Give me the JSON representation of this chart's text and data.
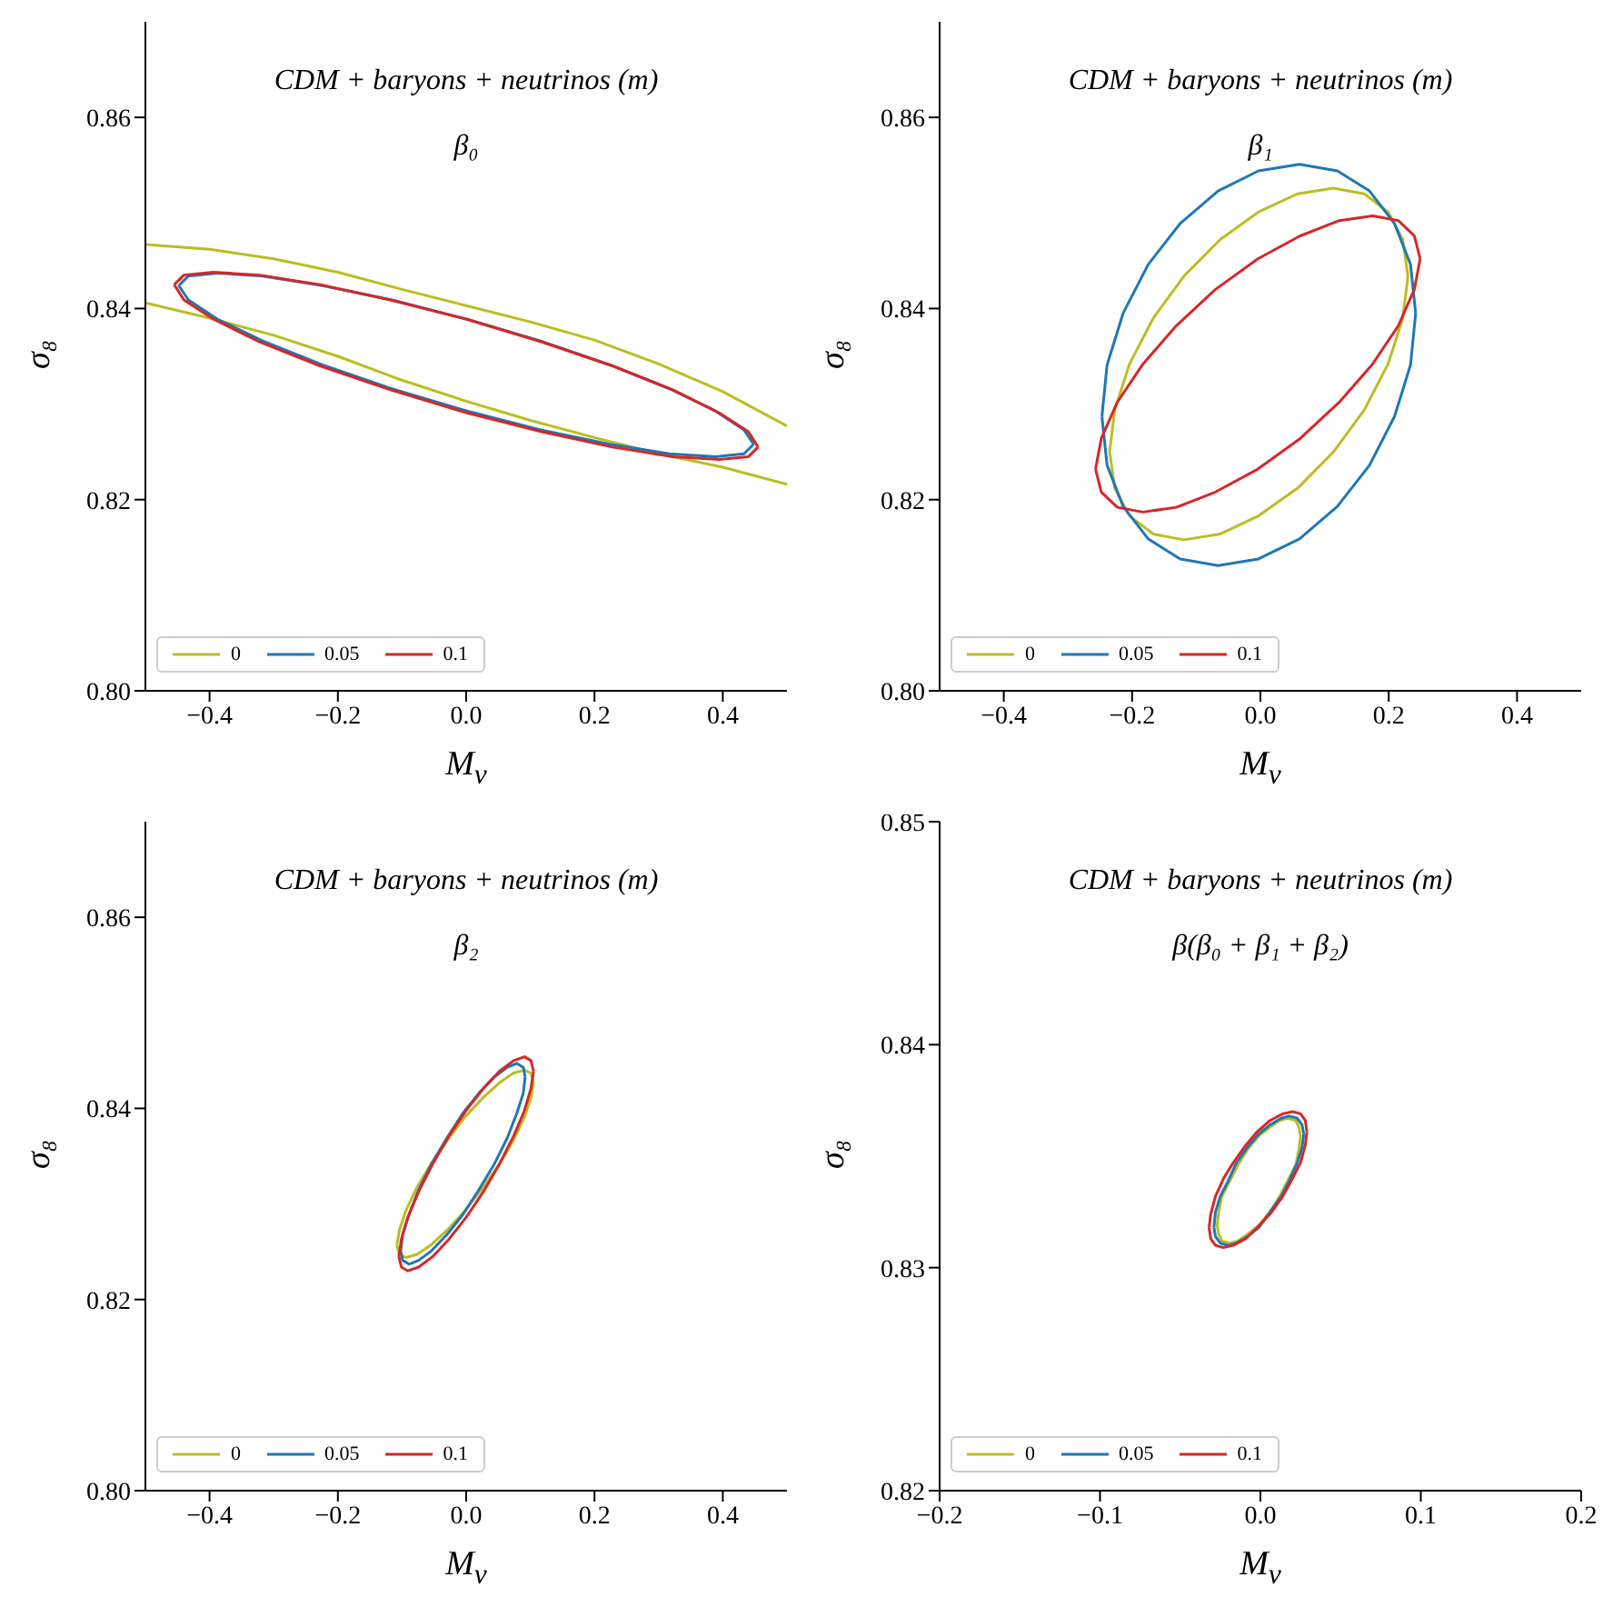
{
  "chart_data": [
    {
      "type": "line",
      "title": "CDM + baryons + neutrinos (m)",
      "subtitle": "β₀",
      "xlabel": "M$_{ν}$",
      "ylabel": "σ₈",
      "xlim": [
        -0.5,
        0.5
      ],
      "xticks": [
        {
          "value": -0.4,
          "label": "−0.4"
        },
        {
          "value": -0.2,
          "label": "−0.2"
        },
        {
          "value": 0,
          "label": "0.0"
        },
        {
          "value": 0.2,
          "label": "0.2"
        },
        {
          "value": 0.4,
          "label": "0.4"
        }
      ],
      "ylim": [
        0.8,
        0.87
      ],
      "yticks": [
        {
          "value": 0.8,
          "label": "0.80"
        },
        {
          "value": 0.82,
          "label": "0.82"
        },
        {
          "value": 0.84,
          "label": "0.84"
        },
        {
          "value": 0.86,
          "label": "0.86"
        }
      ],
      "legend": "bottom left",
      "series": [
        {
          "name": "0",
          "color": "#bcbd22",
          "x": [
            -0.5,
            -0.4,
            -0.3,
            -0.2,
            -0.1,
            0,
            0.1,
            0.2,
            0.3,
            0.4,
            0.5,
            null,
            0.5,
            0.4,
            0.3,
            0.2,
            0.1,
            0,
            -0.1,
            -0.2,
            -0.3,
            -0.4,
            -0.5
          ],
          "values": [
            0.8467,
            0.8462,
            0.8452,
            0.8438,
            0.842,
            0.8403,
            0.8386,
            0.8367,
            0.8342,
            0.8313,
            0.8277,
            null,
            0.8216,
            0.8234,
            0.8248,
            0.8265,
            0.8283,
            0.8303,
            0.8325,
            0.835,
            0.8372,
            0.839,
            0.8406
          ]
        },
        {
          "name": "0.05",
          "color": "#1f77b4",
          "x": [
            -0.448,
            -0.433,
            -0.388,
            -0.317,
            -0.224,
            -0.116,
            0,
            0.116,
            0.224,
            0.317,
            0.388,
            0.433,
            0.448,
            null,
            0.448,
            0.433,
            0.388,
            0.317,
            0.224,
            0.116,
            0,
            -0.116,
            -0.224,
            -0.317,
            -0.388,
            -0.433,
            -0.448
          ],
          "values": [
            0.8424,
            0.8434,
            0.8437,
            0.8434,
            0.8424,
            0.8409,
            0.8389,
            0.8366,
            0.8341,
            0.8316,
            0.8293,
            0.8273,
            0.8258,
            null,
            0.8258,
            0.8248,
            0.8245,
            0.8248,
            0.8258,
            0.8273,
            0.8293,
            0.8316,
            0.8341,
            0.8366,
            0.8389,
            0.8409,
            0.8424
          ]
        },
        {
          "name": "0.1",
          "color": "#d62728",
          "x": [
            -0.455,
            -0.44,
            -0.394,
            -0.322,
            -0.228,
            -0.118,
            0,
            0.118,
            0.228,
            0.322,
            0.394,
            0.44,
            0.455,
            null,
            0.455,
            0.44,
            0.394,
            0.322,
            0.228,
            0.118,
            0,
            -0.118,
            -0.228,
            -0.322,
            -0.394,
            -0.44,
            -0.455
          ],
          "values": [
            0.8425,
            0.8435,
            0.8438,
            0.8435,
            0.8425,
            0.8409,
            0.8389,
            0.8365,
            0.834,
            0.8315,
            0.8291,
            0.8271,
            0.8255,
            null,
            0.8255,
            0.8245,
            0.8242,
            0.8245,
            0.8255,
            0.8271,
            0.8291,
            0.8315,
            0.834,
            0.8365,
            0.8389,
            0.8409,
            0.8425
          ]
        }
      ]
    },
    {
      "type": "line",
      "title": "CDM + baryons + neutrinos (m)",
      "subtitle": "β₁",
      "xlabel": "M$_{ν}$",
      "ylabel": "σ₈",
      "xlim": [
        -0.5,
        0.5
      ],
      "xticks": [
        {
          "value": -0.4,
          "label": "−0.4"
        },
        {
          "value": -0.2,
          "label": "−0.2"
        },
        {
          "value": 0,
          "label": "0.0"
        },
        {
          "value": 0.2,
          "label": "0.2"
        },
        {
          "value": 0.4,
          "label": "0.4"
        }
      ],
      "ylim": [
        0.8,
        0.87
      ],
      "yticks": [
        {
          "value": 0.8,
          "label": "0.80"
        },
        {
          "value": 0.82,
          "label": "0.82"
        },
        {
          "value": 0.84,
          "label": "0.84"
        },
        {
          "value": 0.86,
          "label": "0.86"
        }
      ],
      "legend": "bottom left",
      "series": [
        {
          "name": "0",
          "color": "#bcbd22",
          "x": [
            -0.235,
            -0.227,
            -0.204,
            -0.167,
            -0.119,
            -0.063,
            -0.003,
            0.058,
            0.114,
            0.162,
            0.199,
            0.222,
            0.23,
            null,
            0.23,
            0.222,
            0.199,
            0.162,
            0.114,
            0.058,
            -0.003,
            -0.063,
            -0.119,
            -0.167,
            -0.204,
            -0.227,
            -0.235
          ],
          "values": [
            0.825,
            0.8294,
            0.8342,
            0.839,
            0.8434,
            0.8472,
            0.8501,
            0.852,
            0.8526,
            0.852,
            0.8501,
            0.8472,
            0.8434,
            null,
            0.8434,
            0.839,
            0.8342,
            0.8294,
            0.825,
            0.8212,
            0.8183,
            0.8164,
            0.8158,
            0.8164,
            0.8183,
            0.8212,
            0.825
          ]
        },
        {
          "name": "0.05",
          "color": "#1f77b4",
          "x": [
            -0.247,
            -0.239,
            -0.214,
            -0.175,
            -0.125,
            -0.066,
            -0.003,
            0.061,
            0.12,
            0.17,
            0.209,
            0.234,
            0.242,
            null,
            0.242,
            0.234,
            0.209,
            0.17,
            0.12,
            0.061,
            -0.003,
            -0.066,
            -0.125,
            -0.175,
            -0.214,
            -0.239,
            -0.247
          ],
          "values": [
            0.8287,
            0.8341,
            0.8395,
            0.8446,
            0.8489,
            0.8523,
            0.8544,
            0.8551,
            0.8544,
            0.8523,
            0.8489,
            0.8446,
            0.8395,
            null,
            0.8395,
            0.8341,
            0.8287,
            0.8236,
            0.8193,
            0.8159,
            0.8138,
            0.8131,
            0.8138,
            0.8159,
            0.8193,
            0.8236,
            0.8287
          ]
        },
        {
          "name": "0.1",
          "color": "#d62728",
          "x": [
            -0.257,
            -0.248,
            -0.223,
            -0.183,
            -0.131,
            -0.07,
            -0.004,
            0.062,
            0.123,
            0.175,
            0.215,
            0.24,
            0.249,
            null,
            0.249,
            0.24,
            0.215,
            0.175,
            0.123,
            0.062,
            -0.004,
            -0.07,
            -0.131,
            -0.183,
            -0.223,
            -0.248,
            -0.257
          ],
          "values": [
            0.8232,
            0.8264,
            0.8302,
            0.8342,
            0.8382,
            0.842,
            0.8452,
            0.8476,
            0.8492,
            0.8497,
            0.8492,
            0.8476,
            0.8452,
            null,
            0.8452,
            0.842,
            0.8382,
            0.8342,
            0.8302,
            0.8264,
            0.8232,
            0.8208,
            0.8192,
            0.8187,
            0.8192,
            0.8208,
            0.8232
          ]
        }
      ]
    },
    {
      "type": "line",
      "title": "CDM + baryons + neutrinos (m)",
      "subtitle": "β₂",
      "xlabel": "M$_{ν}$",
      "ylabel": "σ₈",
      "xlim": [
        -0.5,
        0.5
      ],
      "xticks": [
        {
          "value": -0.4,
          "label": "−0.4"
        },
        {
          "value": -0.2,
          "label": "−0.2"
        },
        {
          "value": 0,
          "label": "0.0"
        },
        {
          "value": 0.2,
          "label": "0.2"
        },
        {
          "value": 0.4,
          "label": "0.4"
        }
      ],
      "ylim": [
        0.8,
        0.87
      ],
      "yticks": [
        {
          "value": 0.8,
          "label": "0.80"
        },
        {
          "value": 0.82,
          "label": "0.82"
        },
        {
          "value": 0.84,
          "label": "0.84"
        },
        {
          "value": 0.86,
          "label": "0.86"
        }
      ],
      "legend": "bottom left",
      "series": [
        {
          "name": "0",
          "color": "#bcbd22",
          "x": [
            -0.108,
            -0.104,
            -0.094,
            -0.077,
            -0.055,
            -0.029,
            -0.002,
            0.026,
            0.052,
            0.074,
            0.091,
            0.101,
            0.105,
            null,
            0.105,
            0.101,
            0.091,
            0.074,
            0.052,
            0.026,
            -0.002,
            -0.029,
            -0.055,
            -0.077,
            -0.094,
            -0.104,
            -0.108
          ],
          "values": [
            0.8257,
            0.8273,
            0.8293,
            0.8317,
            0.8342,
            0.8367,
            0.8391,
            0.8411,
            0.8427,
            0.8437,
            0.844,
            0.8437,
            0.8427,
            null,
            0.8427,
            0.8411,
            0.8391,
            0.8367,
            0.8342,
            0.8317,
            0.8293,
            0.8273,
            0.8257,
            0.8247,
            0.8244,
            0.8247,
            0.8257
          ]
        },
        {
          "name": "0.05",
          "color": "#1f77b4",
          "x": [
            -0.102,
            -0.099,
            -0.089,
            -0.074,
            -0.054,
            -0.03,
            -0.005,
            0.02,
            0.044,
            0.064,
            0.079,
            0.089,
            0.092,
            null,
            0.092,
            0.089,
            0.079,
            0.064,
            0.044,
            0.02,
            -0.005,
            -0.03,
            -0.054,
            -0.074,
            -0.089,
            -0.099,
            -0.102
          ],
          "values": [
            0.8251,
            0.8268,
            0.8289,
            0.8315,
            0.8342,
            0.8369,
            0.8395,
            0.8416,
            0.8433,
            0.8443,
            0.8447,
            0.8443,
            0.8433,
            null,
            0.8433,
            0.8416,
            0.8395,
            0.8369,
            0.8342,
            0.8315,
            0.8289,
            0.8268,
            0.8251,
            0.8241,
            0.8237,
            0.8241,
            0.8251
          ]
        },
        {
          "name": "0.1",
          "color": "#d62728",
          "x": [
            -0.105,
            -0.101,
            -0.091,
            -0.074,
            -0.052,
            -0.027,
            0,
            0.027,
            0.052,
            0.074,
            0.091,
            0.101,
            0.105,
            null,
            0.105,
            0.101,
            0.091,
            0.074,
            0.052,
            0.027,
            0,
            -0.027,
            -0.052,
            -0.074,
            -0.091,
            -0.101,
            -0.105
          ],
          "values": [
            0.8245,
            0.8263,
            0.8286,
            0.8313,
            0.8342,
            0.8371,
            0.8398,
            0.8421,
            0.8439,
            0.845,
            0.8454,
            0.845,
            0.8439,
            null,
            0.8439,
            0.8421,
            0.8398,
            0.8371,
            0.8342,
            0.8313,
            0.8286,
            0.8263,
            0.8245,
            0.8234,
            0.823,
            0.8234,
            0.8245
          ]
        }
      ]
    },
    {
      "type": "line",
      "title": "CDM + baryons + neutrinos (m)",
      "subtitle": "β(β₀ + β₁ + β₂)",
      "xlabel": "M$_{ν}$",
      "ylabel": "σ₈",
      "xlim": [
        -0.2,
        0.2
      ],
      "xticks": [
        {
          "value": -0.2,
          "label": "−0.2"
        },
        {
          "value": -0.1,
          "label": "−0.1"
        },
        {
          "value": 0,
          "label": "0.0"
        },
        0.1,
        0.2
      ],
      "ylim": [
        0.82,
        0.85
      ],
      "yticks": [
        0.82,
        0.83,
        0.84,
        0.85
      ],
      "legend": "bottom left",
      "series": [
        {
          "name": "0",
          "color": "#bcbd22",
          "x": [
            -0.027,
            -0.026,
            -0.024,
            -0.019,
            -0.014,
            -0.008,
            -0.001,
            0.006,
            0.012,
            0.017,
            0.022,
            0.024,
            0.025,
            null,
            0.025,
            0.024,
            0.022,
            0.017,
            0.012,
            0.006,
            -0.001,
            -0.008,
            -0.014,
            -0.019,
            -0.024,
            -0.026,
            -0.027
          ],
          "values": [
            0.8319,
            0.8325,
            0.8332,
            0.8339,
            0.8346,
            0.8353,
            0.8359,
            0.8363,
            0.8366,
            0.8367,
            0.8366,
            0.8363,
            0.8359,
            null,
            0.8359,
            0.8353,
            0.8346,
            0.8339,
            0.8332,
            0.8325,
            0.8319,
            0.8315,
            0.8312,
            0.8311,
            0.8312,
            0.8315,
            0.8319
          ]
        },
        {
          "name": "0.05",
          "color": "#1f77b4",
          "x": [
            -0.029,
            -0.028,
            -0.025,
            -0.02,
            -0.015,
            -0.008,
            -0.001,
            0.006,
            0.013,
            0.018,
            0.023,
            0.026,
            0.027,
            null,
            0.027,
            0.026,
            0.023,
            0.018,
            0.013,
            0.006,
            -0.001,
            -0.008,
            -0.015,
            -0.02,
            -0.025,
            -0.028,
            -0.029
          ],
          "values": [
            0.8318,
            0.8325,
            0.8332,
            0.8339,
            0.8347,
            0.8354,
            0.836,
            0.8364,
            0.8367,
            0.8368,
            0.8367,
            0.8364,
            0.836,
            null,
            0.836,
            0.8354,
            0.8347,
            0.8339,
            0.8332,
            0.8325,
            0.8318,
            0.8314,
            0.8311,
            0.831,
            0.8311,
            0.8314,
            0.8318
          ]
        },
        {
          "name": "0.1",
          "color": "#d62728",
          "x": [
            -0.032,
            -0.031,
            -0.028,
            -0.023,
            -0.017,
            -0.009,
            -0.002,
            0.006,
            0.014,
            0.02,
            0.025,
            0.028,
            0.029,
            null,
            0.029,
            0.028,
            0.025,
            0.02,
            0.014,
            0.006,
            -0.002,
            -0.009,
            -0.017,
            -0.023,
            -0.028,
            -0.031,
            -0.032
          ],
          "values": [
            0.8318,
            0.8324,
            0.8332,
            0.834,
            0.8347,
            0.8355,
            0.8361,
            0.8366,
            0.8369,
            0.837,
            0.8369,
            0.8366,
            0.8361,
            null,
            0.8361,
            0.8355,
            0.8347,
            0.834,
            0.8332,
            0.8324,
            0.8318,
            0.8313,
            0.831,
            0.8309,
            0.831,
            0.8313,
            0.8318
          ]
        }
      ]
    }
  ]
}
